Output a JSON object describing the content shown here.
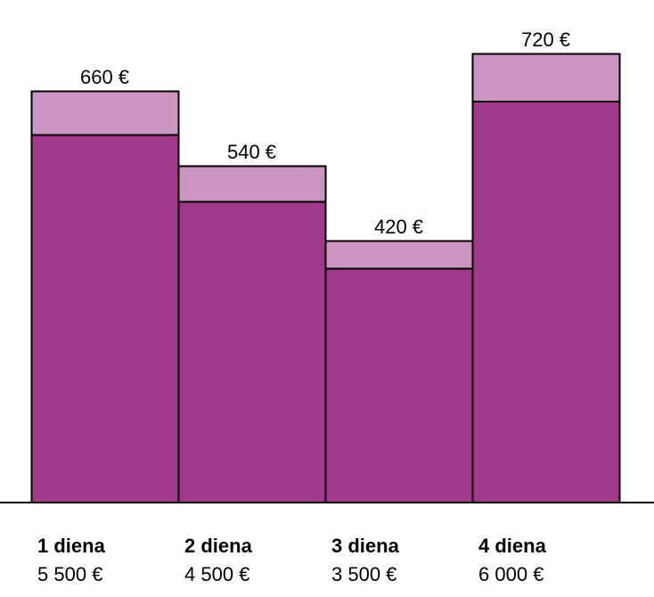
{
  "chart_data": {
    "type": "bar",
    "categories": [
      "1 diena",
      "2 diena",
      "3 diena",
      "4 diena"
    ],
    "category_values": [
      "5 500 €",
      "4 500 €",
      "3 500 €",
      "6 000 €"
    ],
    "top_labels": [
      "660 €",
      "540 €",
      "420 €",
      "720 €"
    ],
    "series": [
      {
        "values": [
          5500,
          4500,
          3500,
          6000
        ]
      },
      {
        "values": [
          660,
          540,
          420,
          720
        ]
      }
    ],
    "stacked": true,
    "colors": {
      "base": "#a0398a",
      "top": "#cb95c2",
      "outline": "#000000",
      "baseline": "#000000"
    },
    "ylim": [
      0,
      6720
    ],
    "grid": false,
    "title": "",
    "xlabel": "",
    "ylabel": ""
  }
}
